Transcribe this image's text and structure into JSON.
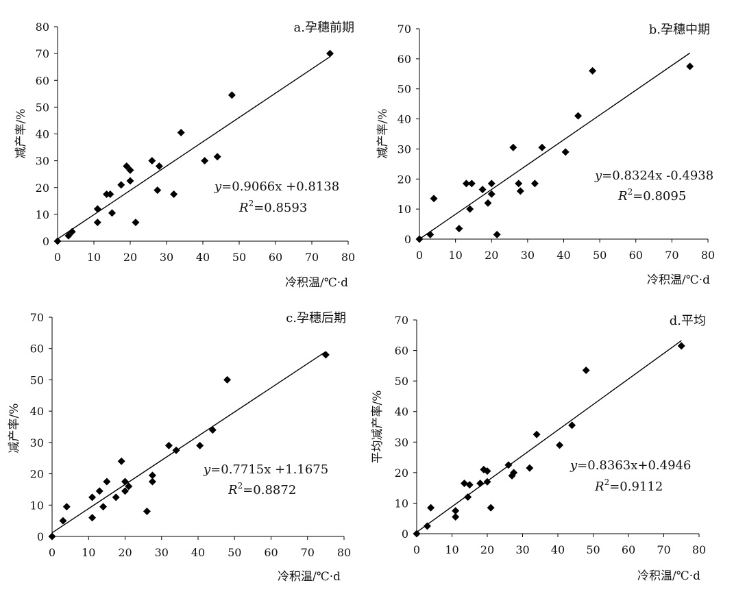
{
  "chart_data": [
    {
      "type": "scatter",
      "title": "a.孕穗前期",
      "xlabel": "冷积温/℃·d",
      "ylabel": "减产率/%",
      "xlim": [
        0,
        80
      ],
      "ylim": [
        0,
        80
      ],
      "xticks": [
        "0",
        "10",
        "20",
        "30",
        "40",
        "50",
        "60",
        "70",
        "80"
      ],
      "yticks": [
        "0",
        "10",
        "20",
        "30",
        "40",
        "50",
        "60",
        "70",
        "80"
      ],
      "equation_prefix": "y",
      "equation_body": "=0.9066x +0.8138",
      "r2_prefix": "R",
      "r2_exp": "2",
      "r2_body": "=0.8593",
      "fit": {
        "slope": 0.9066,
        "intercept": 0.8138,
        "x_end": 75
      },
      "points": [
        [
          0,
          0
        ],
        [
          3,
          2
        ],
        [
          4,
          3.5
        ],
        [
          11,
          12
        ],
        [
          11,
          7
        ],
        [
          13.5,
          17.5
        ],
        [
          14.5,
          17.5
        ],
        [
          15,
          10.5
        ],
        [
          17.5,
          21
        ],
        [
          19,
          28
        ],
        [
          20,
          26.5
        ],
        [
          20,
          22.5
        ],
        [
          21.5,
          7
        ],
        [
          26,
          30
        ],
        [
          27.5,
          19
        ],
        [
          28,
          28
        ],
        [
          32,
          17.5
        ],
        [
          34,
          40.5
        ],
        [
          40.5,
          30
        ],
        [
          44,
          31.5
        ],
        [
          48,
          54.5
        ],
        [
          75,
          70
        ]
      ]
    },
    {
      "type": "scatter",
      "title": "b.孕穗中期",
      "xlabel": "冷积温/℃·d",
      "ylabel": "减产率/%",
      "xlim": [
        0,
        80
      ],
      "ylim": [
        0,
        70
      ],
      "xticks": [
        "0",
        "10",
        "20",
        "30",
        "40",
        "50",
        "60",
        "70",
        "80"
      ],
      "yticks": [
        "0",
        "10",
        "20",
        "30",
        "40",
        "50",
        "60",
        "70"
      ],
      "equation_prefix": "y",
      "equation_body": "=0.8324x -0.4938",
      "r2_prefix": "R",
      "r2_exp": "2",
      "r2_body": "=0.8095",
      "fit": {
        "slope": 0.8324,
        "intercept": -0.4938,
        "x_end": 75
      },
      "points": [
        [
          0,
          0
        ],
        [
          3,
          1.5
        ],
        [
          4,
          13.5
        ],
        [
          11,
          3.5
        ],
        [
          13,
          18.5
        ],
        [
          14,
          10
        ],
        [
          14.5,
          18.5
        ],
        [
          17.5,
          16.5
        ],
        [
          19,
          12
        ],
        [
          20,
          15
        ],
        [
          20,
          18.5
        ],
        [
          21.5,
          1.5
        ],
        [
          26,
          30.5
        ],
        [
          27.5,
          18.5
        ],
        [
          28,
          16
        ],
        [
          32,
          18.5
        ],
        [
          34,
          30.5
        ],
        [
          40.5,
          29
        ],
        [
          44,
          41
        ],
        [
          48,
          56
        ],
        [
          75,
          57.5
        ]
      ]
    },
    {
      "type": "scatter",
      "title": "c.孕穗后期",
      "xlabel": "冷积温/℃·d",
      "ylabel": "减产率/%",
      "xlim": [
        0,
        80
      ],
      "ylim": [
        0,
        70
      ],
      "xticks": [
        "0",
        "10",
        "20",
        "30",
        "40",
        "50",
        "60",
        "70",
        "80"
      ],
      "yticks": [
        "0",
        "10",
        "20",
        "30",
        "40",
        "50",
        "60",
        "70"
      ],
      "equation_prefix": "y",
      "equation_body": "=0.7715x +1.1675",
      "r2_prefix": "R",
      "r2_exp": "2",
      "r2_body": "=0.8872",
      "fit": {
        "slope": 0.7715,
        "intercept": 1.1675,
        "x_end": 75
      },
      "points": [
        [
          0,
          0
        ],
        [
          3,
          5
        ],
        [
          4,
          9.5
        ],
        [
          11,
          12.5
        ],
        [
          11,
          6
        ],
        [
          13,
          14.5
        ],
        [
          14,
          9.5
        ],
        [
          15,
          17.5
        ],
        [
          17.5,
          12.5
        ],
        [
          19,
          24
        ],
        [
          20,
          17.5
        ],
        [
          20,
          14.5
        ],
        [
          21,
          16
        ],
        [
          26,
          8
        ],
        [
          27.5,
          19.5
        ],
        [
          27.5,
          17.5
        ],
        [
          32,
          29
        ],
        [
          34,
          27.5
        ],
        [
          40.5,
          29
        ],
        [
          44,
          34
        ],
        [
          48,
          50
        ],
        [
          75,
          58
        ]
      ]
    },
    {
      "type": "scatter",
      "title": "d.平均",
      "xlabel": "冷积温/℃·d",
      "ylabel": "平均减产率/%",
      "xlim": [
        0,
        80
      ],
      "ylim": [
        0,
        70
      ],
      "xticks": [
        "0",
        "10",
        "20",
        "30",
        "40",
        "50",
        "60",
        "70",
        "80"
      ],
      "yticks": [
        "0",
        "10",
        "20",
        "30",
        "40",
        "50",
        "60",
        "70"
      ],
      "equation_prefix": "y",
      "equation_body": "=0.8363x+0.4946",
      "r2_prefix": "R",
      "r2_exp": "2",
      "r2_body": "=0.9112",
      "fit": {
        "slope": 0.8363,
        "intercept": 0.4946,
        "x_end": 75
      },
      "points": [
        [
          0,
          0
        ],
        [
          3,
          2.5
        ],
        [
          4,
          8.5
        ],
        [
          11,
          7.5
        ],
        [
          11,
          5.5
        ],
        [
          13.5,
          16.5
        ],
        [
          14.5,
          12
        ],
        [
          15,
          16
        ],
        [
          18,
          16.5
        ],
        [
          19,
          21
        ],
        [
          20,
          17
        ],
        [
          20,
          20.5
        ],
        [
          21,
          8.5
        ],
        [
          26,
          22.5
        ],
        [
          27,
          19
        ],
        [
          27.5,
          20
        ],
        [
          32,
          21.5
        ],
        [
          34,
          32.5
        ],
        [
          40.5,
          29
        ],
        [
          44,
          35.5
        ],
        [
          48,
          53.5
        ],
        [
          75,
          61.5
        ]
      ]
    }
  ]
}
